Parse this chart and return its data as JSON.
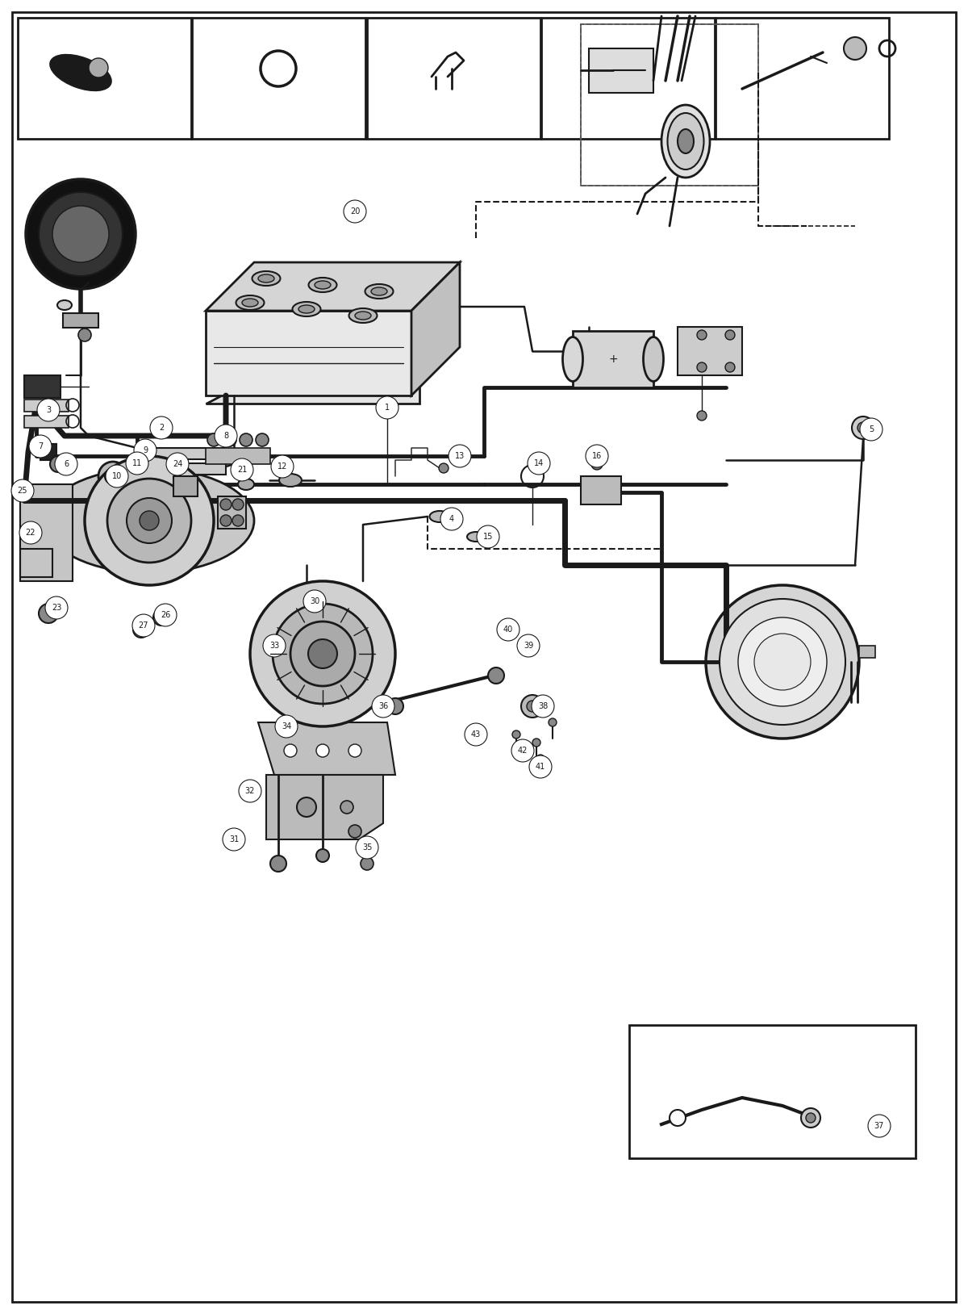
{
  "bg_color": "#ffffff",
  "line_color": "#1a1a1a",
  "fig_width": 12.0,
  "fig_height": 16.28,
  "dpi": 100
}
